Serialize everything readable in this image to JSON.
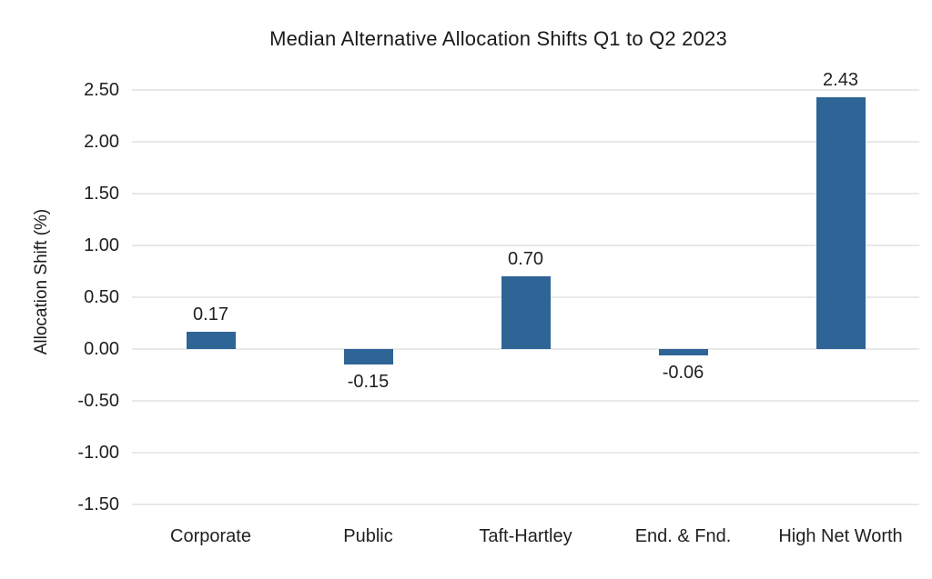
{
  "chart_data": {
    "type": "bar",
    "title": "Median Alternative Allocation Shifts Q1 to Q2 2023",
    "categories": [
      "Corporate",
      "Public",
      "Taft-Hartley",
      "End. & Fnd.",
      "High Net Worth"
    ],
    "values": [
      0.17,
      -0.15,
      0.7,
      -0.06,
      2.43
    ],
    "data_labels": [
      "0.17",
      "-0.15",
      "0.70",
      "-0.06",
      "2.43"
    ],
    "xlabel": "",
    "ylabel": "Allocation Shift (%)",
    "ylim": [
      -1.5,
      2.5
    ],
    "ytick_step": 0.5,
    "ytick_labels": [
      "2.50",
      "2.00",
      "1.50",
      "1.00",
      "0.50",
      "0.00",
      "-0.50",
      "-1.00",
      "-1.50"
    ],
    "ytick_values": [
      2.5,
      2.0,
      1.5,
      1.0,
      0.5,
      0.0,
      -0.5,
      -1.0,
      -1.5
    ],
    "grid": true,
    "legend": false,
    "bar_color": "#2E6496",
    "gridline_color": "#E9E9E9",
    "text_color": "#1f1f1f",
    "background_color": "#ffffff"
  }
}
